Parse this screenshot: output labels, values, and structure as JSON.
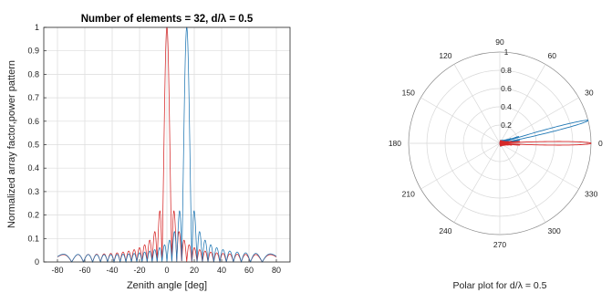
{
  "chart_data": [
    {
      "type": "line",
      "title": "Number of elements = 32, d/λ = 0.5",
      "xlabel": "Zenith angle [deg]",
      "ylabel": "Normalized array factor,power pattern",
      "xlim": [
        -90,
        90
      ],
      "ylim": [
        0,
        1
      ],
      "xticks": [
        "-80",
        "-60",
        "-40",
        "-20",
        "0",
        "20",
        "40",
        "60",
        "80"
      ],
      "yticks": [
        "0",
        "0.1",
        "0.2",
        "0.3",
        "0.4",
        "0.5",
        "0.6",
        "0.7",
        "0.8",
        "0.9",
        "1"
      ],
      "grid": true,
      "elements": 32,
      "spacing": 0.5,
      "series": [
        {
          "steer_deg": 0,
          "color": "#d62728"
        },
        {
          "steer_deg": 14.5,
          "color": "#1f77b4"
        }
      ]
    },
    {
      "type": "polar",
      "title": "Polar plot for d/λ = 0.5",
      "angle_ticks": [
        "0",
        "30",
        "60",
        "90",
        "120",
        "150",
        "180",
        "210",
        "240",
        "270",
        "300",
        "330"
      ],
      "radius_ticks": [
        "0.2",
        "0.4",
        "0.6",
        "0.8",
        "1"
      ],
      "grid": true,
      "series": [
        {
          "steer_deg": 0,
          "color": "#d62728"
        },
        {
          "steer_deg": 14.5,
          "color": "#1f77b4"
        }
      ]
    }
  ]
}
